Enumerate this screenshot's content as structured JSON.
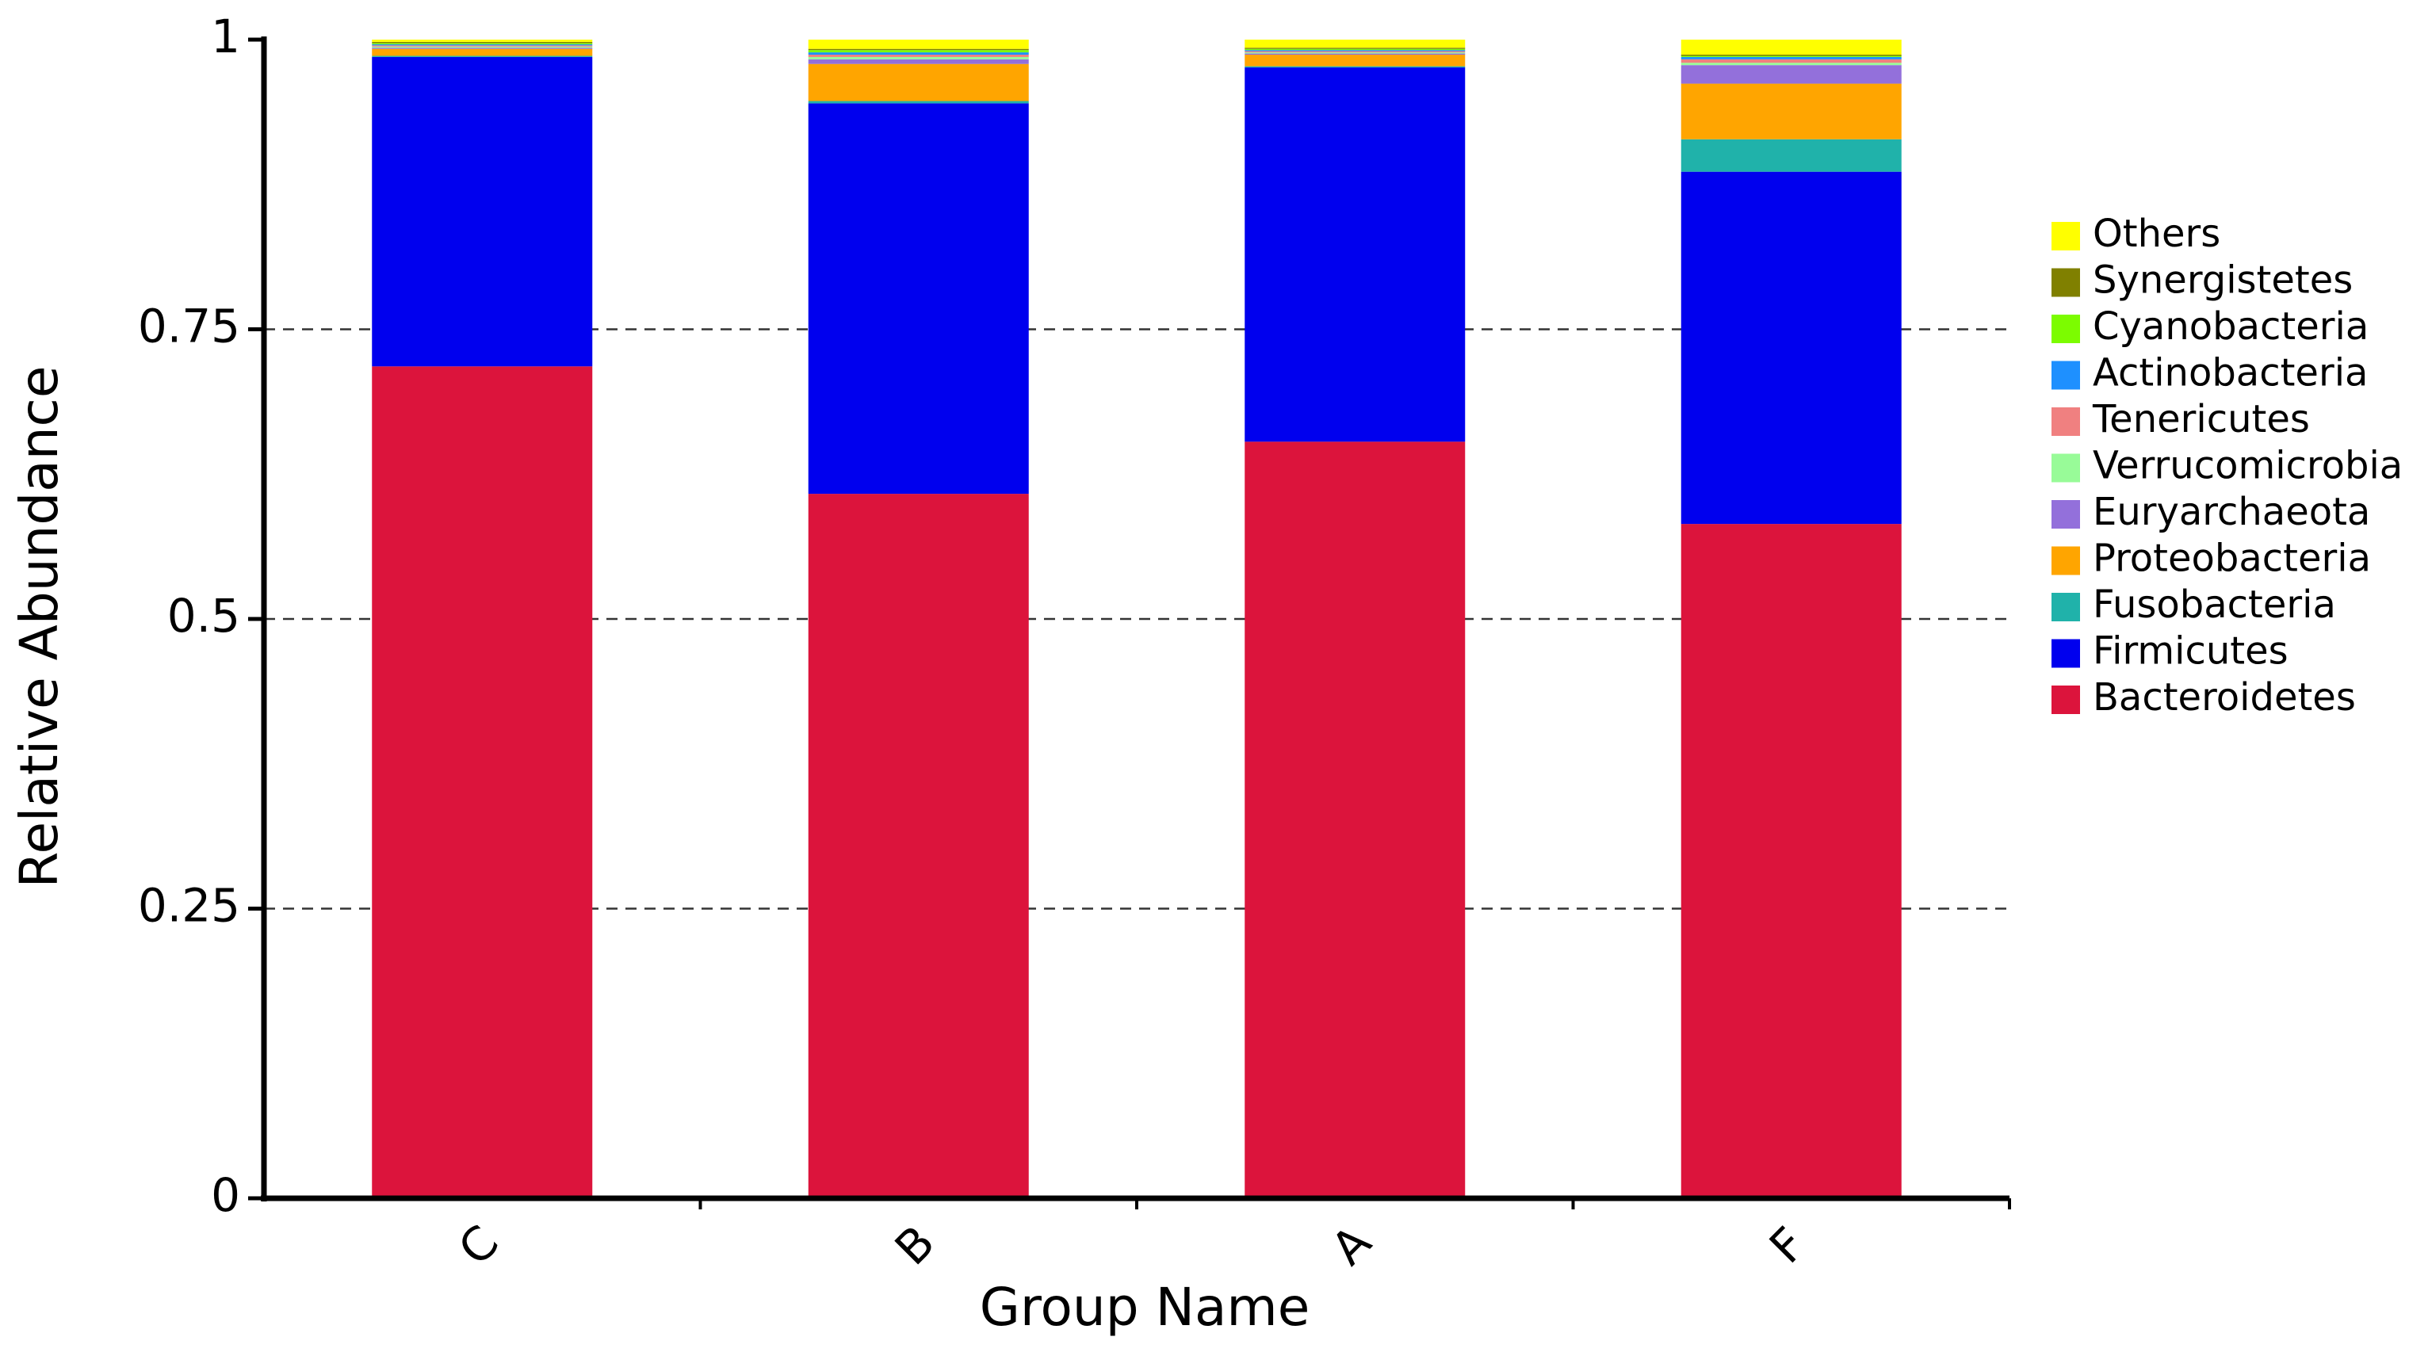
{
  "chart_data": {
    "type": "bar",
    "stacked": true,
    "xlabel": "Group Name",
    "ylabel": "Relative Abundance",
    "ylim": [
      0,
      1
    ],
    "y_ticks": [
      0,
      0.25,
      0.5,
      0.75,
      1
    ],
    "y_tick_labels": [
      "0",
      "0.25",
      "0.5",
      "0.75",
      "1"
    ],
    "grid": "horizontal dashed at 0.25, 0.5, 0.75",
    "legend_position": "right",
    "categories": [
      "C",
      "B",
      "A",
      "F"
    ],
    "series": [
      {
        "name": "Bacteroidetes",
        "color": "#dc143c",
        "values": [
          0.718,
          0.608,
          0.653,
          0.582
        ]
      },
      {
        "name": "Firmicutes",
        "color": "#0000ee",
        "values": [
          0.267,
          0.337,
          0.323,
          0.304
        ]
      },
      {
        "name": "Fusobacteria",
        "color": "#20b2aa",
        "values": [
          0.001,
          0.002,
          0.001,
          0.028
        ]
      },
      {
        "name": "Proteobacteria",
        "color": "#ffa500",
        "values": [
          0.006,
          0.032,
          0.01,
          0.048
        ]
      },
      {
        "name": "Euryarchaeota",
        "color": "#9370db",
        "values": [
          0.001,
          0.004,
          0.001,
          0.016
        ]
      },
      {
        "name": "Verrucomicrobia",
        "color": "#98fb98",
        "values": [
          0.001,
          0.002,
          0.001,
          0.002
        ]
      },
      {
        "name": "Tenericutes",
        "color": "#f08080",
        "values": [
          0.001,
          0.002,
          0.001,
          0.003
        ]
      },
      {
        "name": "Actinobacteria",
        "color": "#1e90ff",
        "values": [
          0.001,
          0.002,
          0.001,
          0.002
        ]
      },
      {
        "name": "Cyanobacteria",
        "color": "#7cfc00",
        "values": [
          0.001,
          0.002,
          0.001,
          0.001
        ]
      },
      {
        "name": "Synergistetes",
        "color": "#808000",
        "values": [
          0.001,
          0.001,
          0.001,
          0.001
        ]
      },
      {
        "name": "Others",
        "color": "#ffff00",
        "values": [
          0.002,
          0.008,
          0.007,
          0.013
        ]
      }
    ],
    "legend_order": [
      "Others",
      "Synergistetes",
      "Cyanobacteria",
      "Actinobacteria",
      "Tenericutes",
      "Verrucomicrobia",
      "Euryarchaeota",
      "Proteobacteria",
      "Fusobacteria",
      "Firmicutes",
      "Bacteroidetes"
    ]
  }
}
